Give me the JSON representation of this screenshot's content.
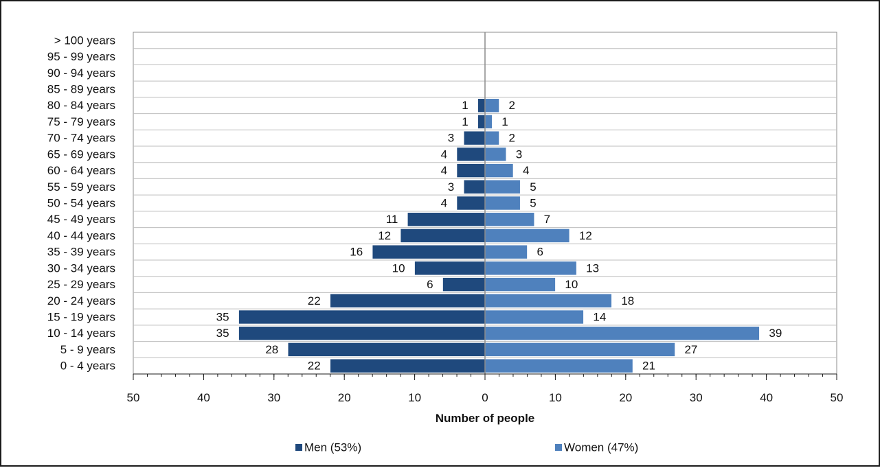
{
  "chart_data": {
    "type": "bar",
    "orientation": "horizontal",
    "title": "",
    "xlabel": "Number of people",
    "ylabel": "",
    "xlim": [
      -50,
      50
    ],
    "x_ticks": [
      -50,
      -40,
      -30,
      -20,
      -10,
      0,
      10,
      20,
      30,
      40,
      50
    ],
    "x_tick_labels": [
      "50",
      "40",
      "30",
      "20",
      "10",
      "0",
      "10",
      "20",
      "30",
      "40",
      "50"
    ],
    "grid": "horizontal",
    "legend_position": "bottom",
    "categories": [
      "0 - 4 years",
      "5 - 9 years",
      "10 - 14 years",
      "15 - 19 years",
      "20 - 24 years",
      "25 - 29 years",
      "30 - 34 years",
      "35 - 39 years",
      "40 - 44 years",
      "45 - 49 years",
      "50 - 54 years",
      "55 - 59 years",
      "60 - 64 years",
      "65 - 69 years",
      "70 - 74 years",
      "75 - 79 years",
      "80 - 84 years",
      "85 - 89 years",
      "90 - 94 years",
      "95 - 99 years",
      "> 100 years"
    ],
    "series": [
      {
        "name": "Men (53%)",
        "color": "#1f497d",
        "side": "left",
        "values": [
          22,
          28,
          35,
          35,
          22,
          6,
          10,
          16,
          12,
          11,
          4,
          3,
          4,
          4,
          3,
          1,
          1,
          0,
          0,
          0,
          0
        ]
      },
      {
        "name": "Women (47%)",
        "color": "#4f81bd",
        "side": "right",
        "values": [
          21,
          27,
          39,
          14,
          18,
          10,
          13,
          6,
          12,
          7,
          5,
          5,
          4,
          3,
          2,
          1,
          2,
          0,
          0,
          0,
          0
        ]
      }
    ]
  }
}
